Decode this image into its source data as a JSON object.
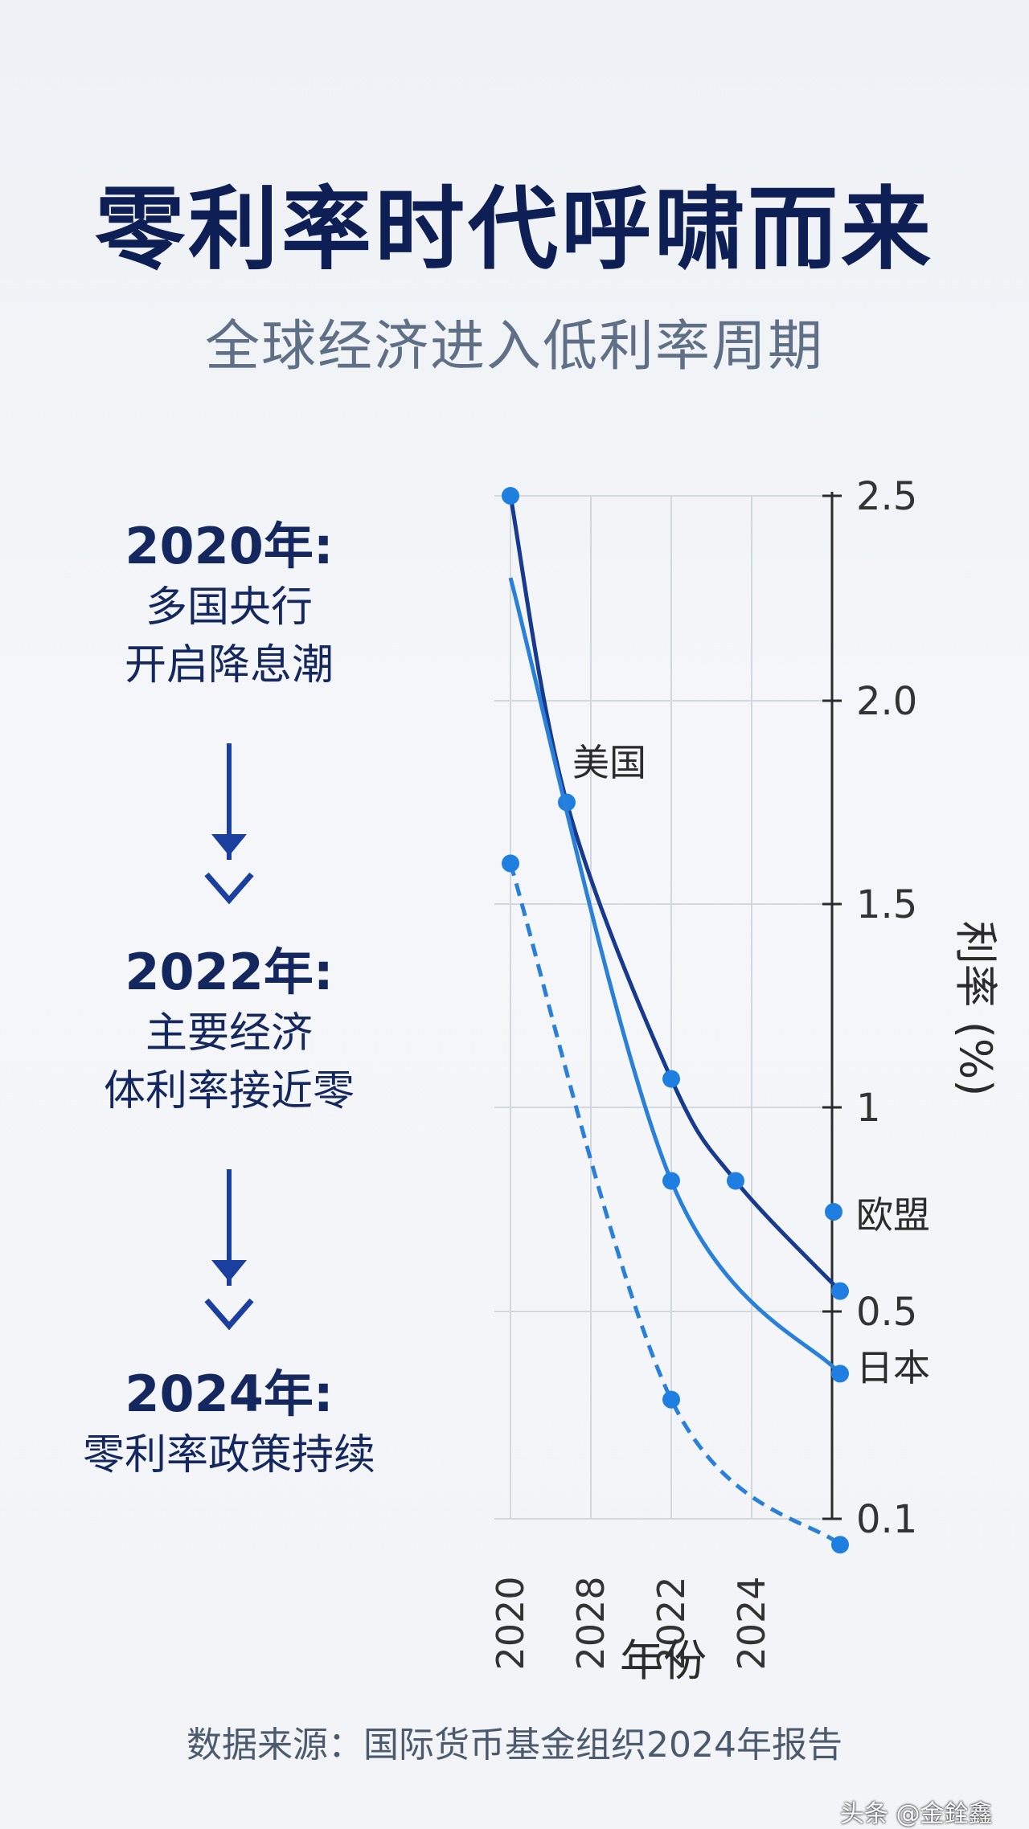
{
  "header": {
    "title": "零利率时代呼啸而来",
    "subtitle": "全球经济进入低利率周期"
  },
  "timeline": [
    {
      "year": "2020年:",
      "lines": [
        "多国央行",
        "开启降息潮"
      ]
    },
    {
      "year": "2022年:",
      "lines": [
        "主要经济",
        "体利率接近零"
      ]
    },
    {
      "year": "2024年:",
      "lines": [
        "零利率政策持续"
      ]
    }
  ],
  "chart_data": {
    "type": "line",
    "x": [
      "2020",
      "2028",
      "2022",
      "2024"
    ],
    "xlabel": "年份",
    "ylabel": "利率 (%)",
    "yticks": [
      "2.5",
      "2.0",
      "1.5",
      "1",
      "0.5",
      "0.1"
    ],
    "series": [
      {
        "name": "美国",
        "color": "#173a8e",
        "style": "solid",
        "points": [
          [
            0,
            2.5
          ],
          [
            0.7,
            1.75
          ],
          [
            2,
            1.07
          ],
          [
            2.8,
            0.82
          ],
          [
            4.1,
            0.55
          ]
        ]
      },
      {
        "name": "日本",
        "color": "#2a80d8",
        "style": "solid",
        "points": [
          [
            0,
            2.3
          ],
          [
            2,
            0.82
          ],
          [
            4.1,
            0.38
          ]
        ]
      },
      {
        "name": "欧盟",
        "color": "#2a80d8",
        "style": "dashed",
        "points": [
          [
            0,
            1.6
          ],
          [
            2,
            0.33
          ],
          [
            4.1,
            0.05
          ]
        ]
      }
    ],
    "grid": true
  },
  "source": "数据来源：国际货币基金组织2024年报告",
  "watermark": "头条 @金銓鑫"
}
